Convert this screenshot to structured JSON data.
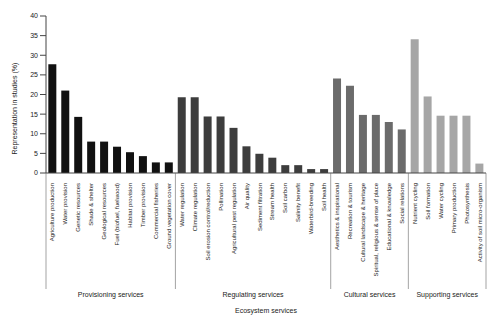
{
  "chart_data": {
    "type": "bar",
    "xlabel": "Ecosystem services",
    "ylabel": "Representation in studies (%)",
    "categories": [
      "Agriculture production",
      "Water provision",
      "Genetic resources",
      "Shade & shelter",
      "Geological resources",
      "Fuel (biofuel, fuelwood)",
      "Habitat provision",
      "Timber provision",
      "Commercial fisheries",
      "Ground vegetation cover",
      "Water regulation",
      "Climate regulation",
      "Soil erosion control/reduction",
      "Pollination",
      "Agricultural pest regulation",
      "Air quality",
      "Sediment filtration",
      "Stream health",
      "Soil carbon",
      "Salinity benefit",
      "Waterbird-breeding",
      "Soil health",
      "Aesthetics & inspirational",
      "Recreation & tourism",
      "Cultural landscape & heritage",
      "Spiritual, religious & sense of place",
      "Educational & knowledge",
      "Social relations",
      "Nutrient cycling",
      "Soil formation",
      "Water cycling",
      "Primary production",
      "Photosynthesis",
      "Activity of soil micro-organism"
    ],
    "series": [
      {
        "name": "Provisioning services",
        "color": "#111111",
        "values": [
          27.7,
          21,
          14.3,
          8,
          8,
          6.7,
          5.3,
          4.3,
          2.7,
          2.7,
          null,
          null,
          null,
          null,
          null,
          null,
          null,
          null,
          null,
          null,
          null,
          null,
          null,
          null,
          null,
          null,
          null,
          null,
          null,
          null,
          null,
          null,
          null,
          null
        ]
      },
      {
        "name": "Regulating services",
        "color": "#3d3d3d",
        "values": [
          null,
          null,
          null,
          null,
          null,
          null,
          null,
          null,
          null,
          null,
          19.3,
          19.3,
          14.4,
          14.4,
          11.5,
          6.8,
          4.9,
          3.9,
          2,
          2,
          1,
          1,
          null,
          null,
          null,
          null,
          null,
          null,
          null,
          null,
          null,
          null,
          null,
          null
        ]
      },
      {
        "name": "Cultural services",
        "color": "#6b6b6b",
        "values": [
          null,
          null,
          null,
          null,
          null,
          null,
          null,
          null,
          null,
          null,
          null,
          null,
          null,
          null,
          null,
          null,
          null,
          null,
          null,
          null,
          null,
          null,
          24.1,
          22.2,
          14.8,
          14.8,
          13,
          11.1,
          null,
          null,
          null,
          null,
          null,
          null
        ]
      },
      {
        "name": "Supporting services",
        "color": "#a6a6a6",
        "values": [
          null,
          null,
          null,
          null,
          null,
          null,
          null,
          null,
          null,
          null,
          null,
          null,
          null,
          null,
          null,
          null,
          null,
          null,
          null,
          null,
          null,
          null,
          null,
          null,
          null,
          null,
          null,
          null,
          34.1,
          19.5,
          14.6,
          14.6,
          14.6,
          2.4
        ]
      }
    ],
    "ylim": [
      0,
      40
    ],
    "yticks": [
      0,
      5,
      10,
      15,
      20,
      25,
      30,
      35,
      40
    ],
    "grid": false
  }
}
